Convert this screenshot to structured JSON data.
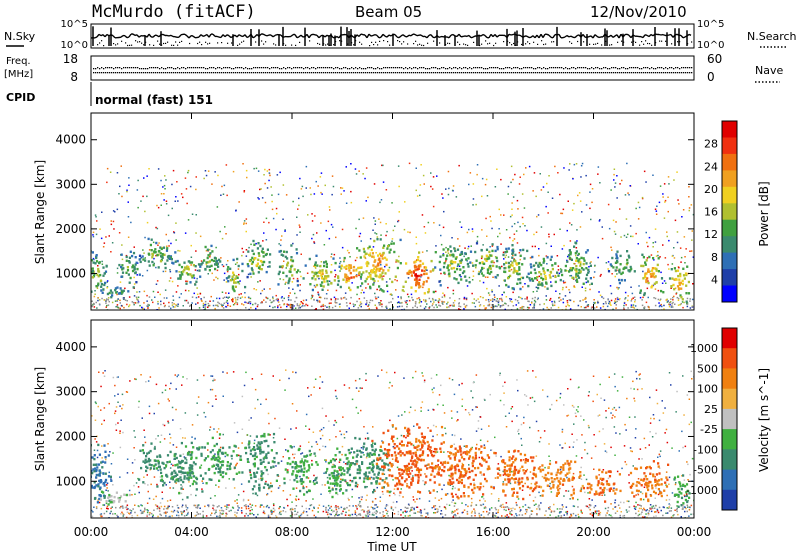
{
  "header": {
    "station": "McMurdo (fitACF)",
    "beam": "Beam 05",
    "date": "12/Nov/2010"
  },
  "top_panels": {
    "nsky_label": "N.Sky",
    "nsearch_label": "N.Search",
    "nsky_ticks": [
      "10^5",
      "10^0"
    ],
    "nsearch_ticks": [
      "10^5",
      "10^0"
    ],
    "freq_label": "Freq.",
    "freq_unit": "[MHz]",
    "freq_ticks": [
      "18",
      "8"
    ],
    "nave_label": "Nave",
    "nave_ticks": [
      "60",
      "0"
    ],
    "cpid_label": "CPID",
    "cpid_text": "normal (fast) 151"
  },
  "chart_data": [
    {
      "type": "heatmap",
      "name": "power",
      "ylabel": "Slant Range [km]",
      "ylim": [
        180,
        4600
      ],
      "yticks": [
        1000,
        2000,
        3000,
        4000
      ],
      "ytick_labels": [
        "1000",
        "2000",
        "3000",
        "4000"
      ],
      "xlim": [
        0,
        24
      ],
      "colorbar": {
        "label": "Power [dB]",
        "tick_labels": [
          "28",
          "24",
          "20",
          "16",
          "12",
          "8",
          "4"
        ],
        "colors": [
          "#0000ff",
          "#1f3fa8",
          "#2e6fb5",
          "#3a8a6e",
          "#40a040",
          "#b0c030",
          "#f0d020",
          "#f0a020",
          "#f07010",
          "#f03010",
          "#e00000"
        ]
      },
      "echo_regions": [
        {
          "t": 0.2,
          "r": 1050,
          "dt": 0.6,
          "dr": 550,
          "level": 0.5
        },
        {
          "t": 0.9,
          "r": 600,
          "dt": 0.6,
          "dr": 200,
          "level": 0.4
        },
        {
          "t": 1.5,
          "r": 1200,
          "dt": 0.5,
          "dr": 500,
          "level": 0.45
        },
        {
          "t": 2.6,
          "r": 1450,
          "dt": 0.8,
          "dr": 400,
          "level": 0.5
        },
        {
          "t": 3.8,
          "r": 1100,
          "dt": 0.6,
          "dr": 400,
          "level": 0.55
        },
        {
          "t": 4.7,
          "r": 1300,
          "dt": 0.5,
          "dr": 450,
          "level": 0.5
        },
        {
          "t": 5.7,
          "r": 1000,
          "dt": 0.4,
          "dr": 450,
          "level": 0.6
        },
        {
          "t": 6.6,
          "r": 1300,
          "dt": 0.6,
          "dr": 500,
          "level": 0.55
        },
        {
          "t": 7.8,
          "r": 1200,
          "dt": 0.5,
          "dr": 500,
          "level": 0.55
        },
        {
          "t": 9.2,
          "r": 1000,
          "dt": 0.8,
          "dr": 450,
          "level": 0.6
        },
        {
          "t": 10.3,
          "r": 1000,
          "dt": 0.6,
          "dr": 450,
          "level": 0.85
        },
        {
          "t": 11.4,
          "r": 1250,
          "dt": 1.0,
          "dr": 650,
          "level": 0.75
        },
        {
          "t": 13.0,
          "r": 1000,
          "dt": 0.8,
          "dr": 550,
          "level": 0.95
        },
        {
          "t": 14.4,
          "r": 1200,
          "dt": 0.8,
          "dr": 550,
          "level": 0.55
        },
        {
          "t": 15.7,
          "r": 1300,
          "dt": 0.6,
          "dr": 450,
          "level": 0.55
        },
        {
          "t": 16.8,
          "r": 1150,
          "dt": 0.8,
          "dr": 550,
          "level": 0.55
        },
        {
          "t": 18.1,
          "r": 1000,
          "dt": 0.8,
          "dr": 450,
          "level": 0.6
        },
        {
          "t": 19.3,
          "r": 1200,
          "dt": 0.7,
          "dr": 550,
          "level": 0.55
        },
        {
          "t": 21.1,
          "r": 1200,
          "dt": 0.6,
          "dr": 400,
          "level": 0.5
        },
        {
          "t": 22.2,
          "r": 1000,
          "dt": 0.6,
          "dr": 500,
          "level": 0.75
        },
        {
          "t": 23.4,
          "r": 800,
          "dt": 0.5,
          "dr": 500,
          "level": 0.75
        }
      ]
    },
    {
      "type": "heatmap",
      "name": "velocity",
      "ylabel": "Slant Range [km]",
      "xlabel": "Time UT",
      "ylim": [
        180,
        4600
      ],
      "yticks": [
        1000,
        2000,
        3000,
        4000
      ],
      "ytick_labels": [
        "1000",
        "2000",
        "3000",
        "4000"
      ],
      "xlim": [
        0,
        24
      ],
      "xticks": [
        0,
        4,
        8,
        12,
        16,
        20,
        24
      ],
      "xtick_labels": [
        "00:00",
        "04:00",
        "08:00",
        "12:00",
        "16:00",
        "20:00",
        "00:00"
      ],
      "colorbar": {
        "label": "Velocity [m s^-1]",
        "tick_labels": [
          "1000",
          "500",
          "100",
          "25",
          "-25",
          "-100",
          "-500",
          "-1000"
        ],
        "colors": [
          "#1f3fa8",
          "#2e6fb5",
          "#3a8a6e",
          "#40b040",
          "#c0c0c0",
          "#f0b040",
          "#f08010",
          "#f05010",
          "#e00000"
        ]
      },
      "echo_regions": [
        {
          "t": 0.3,
          "r": 1200,
          "dt": 0.6,
          "dr": 800,
          "level": 0.2
        },
        {
          "t": 1.0,
          "r": 650,
          "dt": 0.8,
          "dr": 200,
          "level": 0.45
        },
        {
          "t": 2.7,
          "r": 1400,
          "dt": 1.0,
          "dr": 500,
          "level": 0.3
        },
        {
          "t": 3.9,
          "r": 1300,
          "dt": 0.8,
          "dr": 700,
          "level": 0.32
        },
        {
          "t": 5.2,
          "r": 1500,
          "dt": 0.8,
          "dr": 600,
          "level": 0.32
        },
        {
          "t": 6.7,
          "r": 1400,
          "dt": 0.8,
          "dr": 800,
          "level": 0.3
        },
        {
          "t": 8.3,
          "r": 1300,
          "dt": 0.8,
          "dr": 600,
          "level": 0.35
        },
        {
          "t": 9.8,
          "r": 1200,
          "dt": 0.8,
          "dr": 600,
          "level": 0.35
        },
        {
          "t": 11.0,
          "r": 1400,
          "dt": 1.0,
          "dr": 700,
          "level": 0.3
        },
        {
          "t": 12.6,
          "r": 1500,
          "dt": 1.6,
          "dr": 900,
          "level": 0.8
        },
        {
          "t": 14.8,
          "r": 1300,
          "dt": 1.4,
          "dr": 700,
          "level": 0.78
        },
        {
          "t": 16.8,
          "r": 1200,
          "dt": 1.2,
          "dr": 600,
          "level": 0.78
        },
        {
          "t": 18.6,
          "r": 1100,
          "dt": 1.0,
          "dr": 500,
          "level": 0.72
        },
        {
          "t": 20.3,
          "r": 950,
          "dt": 0.8,
          "dr": 400,
          "level": 0.78
        },
        {
          "t": 22.2,
          "r": 1000,
          "dt": 0.9,
          "dr": 500,
          "level": 0.75
        },
        {
          "t": 23.5,
          "r": 800,
          "dt": 0.4,
          "dr": 500,
          "level": 0.35
        }
      ]
    }
  ]
}
